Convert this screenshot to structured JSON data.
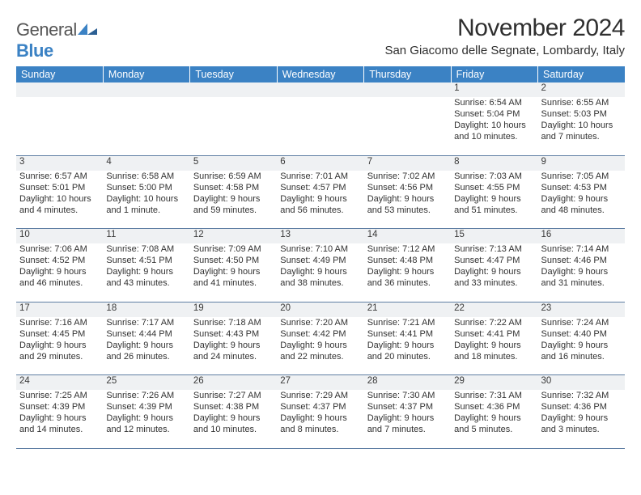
{
  "brand": {
    "name_a": "General",
    "name_b": "Blue"
  },
  "title": "November 2024",
  "location": "San Giacomo delle Segnate, Lombardy, Italy",
  "colors": {
    "header_bg": "#3b82c4",
    "header_text": "#ffffff",
    "daynum_bg": "#eff1f3",
    "border": "#5f7ea3",
    "body_text": "#323232"
  },
  "weekdays": [
    "Sunday",
    "Monday",
    "Tuesday",
    "Wednesday",
    "Thursday",
    "Friday",
    "Saturday"
  ],
  "weeks": [
    [
      {
        "n": "",
        "l1": "",
        "l2": "",
        "l3": "",
        "l4": ""
      },
      {
        "n": "",
        "l1": "",
        "l2": "",
        "l3": "",
        "l4": ""
      },
      {
        "n": "",
        "l1": "",
        "l2": "",
        "l3": "",
        "l4": ""
      },
      {
        "n": "",
        "l1": "",
        "l2": "",
        "l3": "",
        "l4": ""
      },
      {
        "n": "",
        "l1": "",
        "l2": "",
        "l3": "",
        "l4": ""
      },
      {
        "n": "1",
        "l1": "Sunrise: 6:54 AM",
        "l2": "Sunset: 5:04 PM",
        "l3": "Daylight: 10 hours",
        "l4": "and 10 minutes."
      },
      {
        "n": "2",
        "l1": "Sunrise: 6:55 AM",
        "l2": "Sunset: 5:03 PM",
        "l3": "Daylight: 10 hours",
        "l4": "and 7 minutes."
      }
    ],
    [
      {
        "n": "3",
        "l1": "Sunrise: 6:57 AM",
        "l2": "Sunset: 5:01 PM",
        "l3": "Daylight: 10 hours",
        "l4": "and 4 minutes."
      },
      {
        "n": "4",
        "l1": "Sunrise: 6:58 AM",
        "l2": "Sunset: 5:00 PM",
        "l3": "Daylight: 10 hours",
        "l4": "and 1 minute."
      },
      {
        "n": "5",
        "l1": "Sunrise: 6:59 AM",
        "l2": "Sunset: 4:58 PM",
        "l3": "Daylight: 9 hours",
        "l4": "and 59 minutes."
      },
      {
        "n": "6",
        "l1": "Sunrise: 7:01 AM",
        "l2": "Sunset: 4:57 PM",
        "l3": "Daylight: 9 hours",
        "l4": "and 56 minutes."
      },
      {
        "n": "7",
        "l1": "Sunrise: 7:02 AM",
        "l2": "Sunset: 4:56 PM",
        "l3": "Daylight: 9 hours",
        "l4": "and 53 minutes."
      },
      {
        "n": "8",
        "l1": "Sunrise: 7:03 AM",
        "l2": "Sunset: 4:55 PM",
        "l3": "Daylight: 9 hours",
        "l4": "and 51 minutes."
      },
      {
        "n": "9",
        "l1": "Sunrise: 7:05 AM",
        "l2": "Sunset: 4:53 PM",
        "l3": "Daylight: 9 hours",
        "l4": "and 48 minutes."
      }
    ],
    [
      {
        "n": "10",
        "l1": "Sunrise: 7:06 AM",
        "l2": "Sunset: 4:52 PM",
        "l3": "Daylight: 9 hours",
        "l4": "and 46 minutes."
      },
      {
        "n": "11",
        "l1": "Sunrise: 7:08 AM",
        "l2": "Sunset: 4:51 PM",
        "l3": "Daylight: 9 hours",
        "l4": "and 43 minutes."
      },
      {
        "n": "12",
        "l1": "Sunrise: 7:09 AM",
        "l2": "Sunset: 4:50 PM",
        "l3": "Daylight: 9 hours",
        "l4": "and 41 minutes."
      },
      {
        "n": "13",
        "l1": "Sunrise: 7:10 AM",
        "l2": "Sunset: 4:49 PM",
        "l3": "Daylight: 9 hours",
        "l4": "and 38 minutes."
      },
      {
        "n": "14",
        "l1": "Sunrise: 7:12 AM",
        "l2": "Sunset: 4:48 PM",
        "l3": "Daylight: 9 hours",
        "l4": "and 36 minutes."
      },
      {
        "n": "15",
        "l1": "Sunrise: 7:13 AM",
        "l2": "Sunset: 4:47 PM",
        "l3": "Daylight: 9 hours",
        "l4": "and 33 minutes."
      },
      {
        "n": "16",
        "l1": "Sunrise: 7:14 AM",
        "l2": "Sunset: 4:46 PM",
        "l3": "Daylight: 9 hours",
        "l4": "and 31 minutes."
      }
    ],
    [
      {
        "n": "17",
        "l1": "Sunrise: 7:16 AM",
        "l2": "Sunset: 4:45 PM",
        "l3": "Daylight: 9 hours",
        "l4": "and 29 minutes."
      },
      {
        "n": "18",
        "l1": "Sunrise: 7:17 AM",
        "l2": "Sunset: 4:44 PM",
        "l3": "Daylight: 9 hours",
        "l4": "and 26 minutes."
      },
      {
        "n": "19",
        "l1": "Sunrise: 7:18 AM",
        "l2": "Sunset: 4:43 PM",
        "l3": "Daylight: 9 hours",
        "l4": "and 24 minutes."
      },
      {
        "n": "20",
        "l1": "Sunrise: 7:20 AM",
        "l2": "Sunset: 4:42 PM",
        "l3": "Daylight: 9 hours",
        "l4": "and 22 minutes."
      },
      {
        "n": "21",
        "l1": "Sunrise: 7:21 AM",
        "l2": "Sunset: 4:41 PM",
        "l3": "Daylight: 9 hours",
        "l4": "and 20 minutes."
      },
      {
        "n": "22",
        "l1": "Sunrise: 7:22 AM",
        "l2": "Sunset: 4:41 PM",
        "l3": "Daylight: 9 hours",
        "l4": "and 18 minutes."
      },
      {
        "n": "23",
        "l1": "Sunrise: 7:24 AM",
        "l2": "Sunset: 4:40 PM",
        "l3": "Daylight: 9 hours",
        "l4": "and 16 minutes."
      }
    ],
    [
      {
        "n": "24",
        "l1": "Sunrise: 7:25 AM",
        "l2": "Sunset: 4:39 PM",
        "l3": "Daylight: 9 hours",
        "l4": "and 14 minutes."
      },
      {
        "n": "25",
        "l1": "Sunrise: 7:26 AM",
        "l2": "Sunset: 4:39 PM",
        "l3": "Daylight: 9 hours",
        "l4": "and 12 minutes."
      },
      {
        "n": "26",
        "l1": "Sunrise: 7:27 AM",
        "l2": "Sunset: 4:38 PM",
        "l3": "Daylight: 9 hours",
        "l4": "and 10 minutes."
      },
      {
        "n": "27",
        "l1": "Sunrise: 7:29 AM",
        "l2": "Sunset: 4:37 PM",
        "l3": "Daylight: 9 hours",
        "l4": "and 8 minutes."
      },
      {
        "n": "28",
        "l1": "Sunrise: 7:30 AM",
        "l2": "Sunset: 4:37 PM",
        "l3": "Daylight: 9 hours",
        "l4": "and 7 minutes."
      },
      {
        "n": "29",
        "l1": "Sunrise: 7:31 AM",
        "l2": "Sunset: 4:36 PM",
        "l3": "Daylight: 9 hours",
        "l4": "and 5 minutes."
      },
      {
        "n": "30",
        "l1": "Sunrise: 7:32 AM",
        "l2": "Sunset: 4:36 PM",
        "l3": "Daylight: 9 hours",
        "l4": "and 3 minutes."
      }
    ]
  ]
}
